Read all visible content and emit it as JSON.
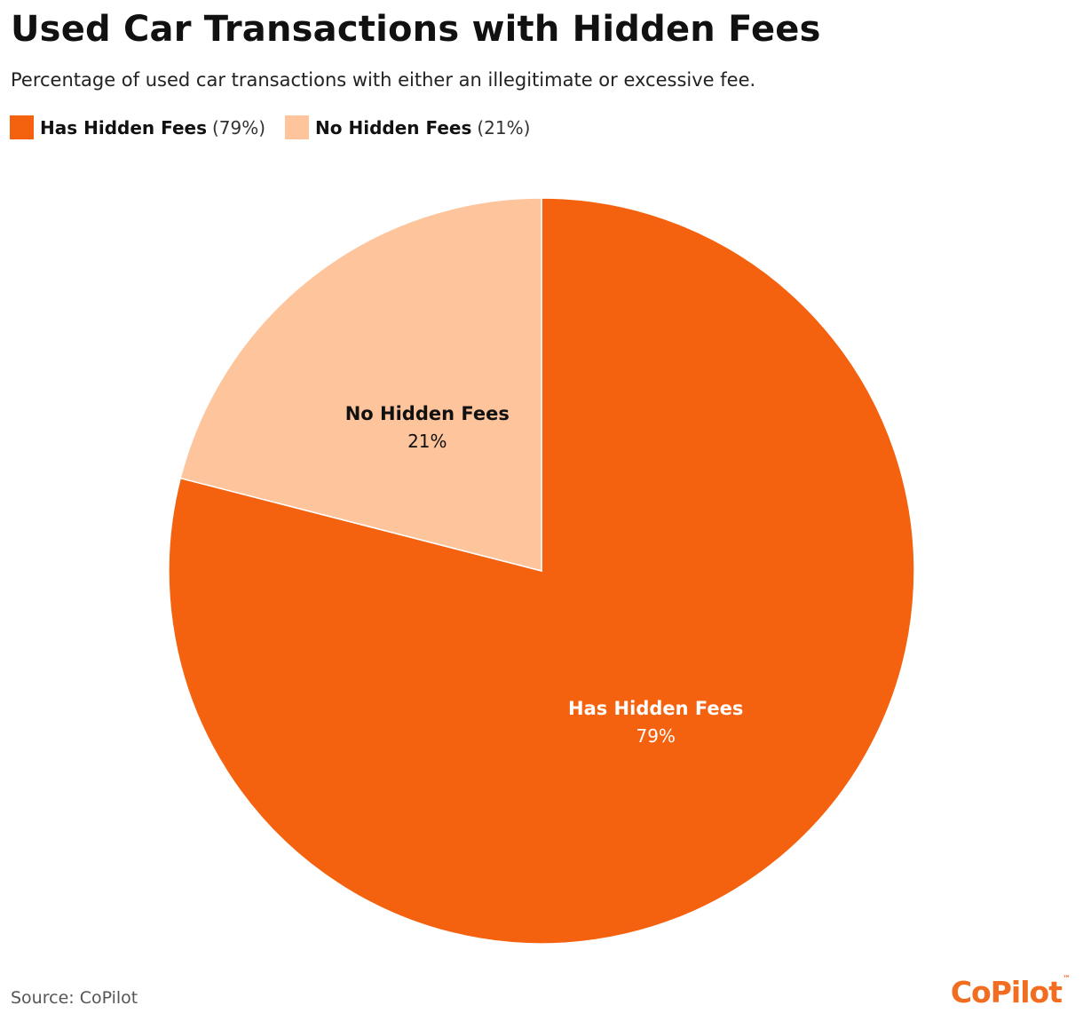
{
  "chart_data": {
    "type": "pie",
    "title": "Used Car Transactions with Hidden Fees",
    "subtitle": "Percentage of used car transactions with either an illegitimate or excessive fee.",
    "slices": [
      {
        "label": "Has Hidden Fees",
        "value": 79,
        "value_label": "79%",
        "legend_value": "(79%)",
        "color": "#f5620f"
      },
      {
        "label": "No Hidden Fees",
        "value": 21,
        "value_label": "21%",
        "legend_value": "(21%)",
        "color": "#fec49c"
      }
    ],
    "legend_position": "top-left",
    "start_angle": "12 o'clock, clockwise"
  },
  "footer": {
    "source": "Source: CoPilot",
    "logo_text": "CoPilot",
    "logo_mark": "™"
  }
}
